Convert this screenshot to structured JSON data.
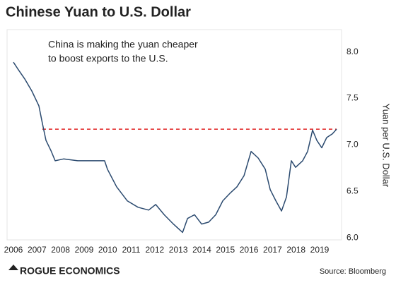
{
  "chart_data": {
    "type": "line",
    "title": "Chinese Yuan to U.S. Dollar",
    "annotation": [
      "China is making the yuan cheaper",
      "to boost exports to the U.S."
    ],
    "y_label": "Yuan per U.S. Dollar",
    "brand": "ROGUE ECONOMICS",
    "source": "Source: Bloomberg",
    "color": "#2b4a6f",
    "x": [
      2006.0,
      2006.18,
      2006.48,
      2006.78,
      2007.08,
      2007.23,
      2007.38,
      2007.59,
      2007.77,
      2008.13,
      2008.73,
      2009.33,
      2009.87,
      2009.99,
      2010.38,
      2010.83,
      2011.29,
      2011.74,
      2012.04,
      2012.4,
      2012.79,
      2013.18,
      2013.39,
      2013.69,
      2013.99,
      2014.29,
      2014.59,
      2014.89,
      2015.19,
      2015.49,
      2015.79,
      2016.09,
      2016.39,
      2016.69,
      2016.9,
      2017.14,
      2017.38,
      2017.59,
      2017.8,
      2017.98,
      2018.28,
      2018.49,
      2018.7,
      2018.88,
      2019.09,
      2019.3,
      2019.54,
      2019.72
    ],
    "values": [
      7.89,
      7.82,
      7.71,
      7.58,
      7.42,
      7.23,
      7.05,
      6.94,
      6.83,
      6.85,
      6.83,
      6.83,
      6.83,
      6.74,
      6.55,
      6.4,
      6.33,
      6.3,
      6.36,
      6.25,
      6.15,
      6.06,
      6.21,
      6.25,
      6.15,
      6.17,
      6.25,
      6.4,
      6.48,
      6.55,
      6.67,
      6.93,
      6.86,
      6.74,
      6.52,
      6.4,
      6.29,
      6.44,
      6.83,
      6.76,
      6.83,
      6.93,
      7.16,
      7.05,
      6.97,
      7.08,
      7.12,
      7.17
    ],
    "reference_line": {
      "y": 7.17,
      "x": [
        2007.23,
        2019.72
      ],
      "color": "#e02020"
    },
    "xlim": [
      2005.73,
      2019.93
    ],
    "xticks": [
      2006,
      2007,
      2008,
      2009,
      2010,
      2011,
      2012,
      2013,
      2014,
      2015,
      2016,
      2017,
      2018,
      2019
    ],
    "ylim": [
      5.98,
      8.24
    ],
    "yticks": [
      {
        "value": 6,
        "label": "6.0"
      },
      {
        "value": 6.5,
        "label": "6.5"
      },
      {
        "value": 7,
        "label": "7.0"
      },
      {
        "value": 7.5,
        "label": "7.5"
      },
      {
        "value": 8,
        "label": "8.0"
      }
    ]
  }
}
